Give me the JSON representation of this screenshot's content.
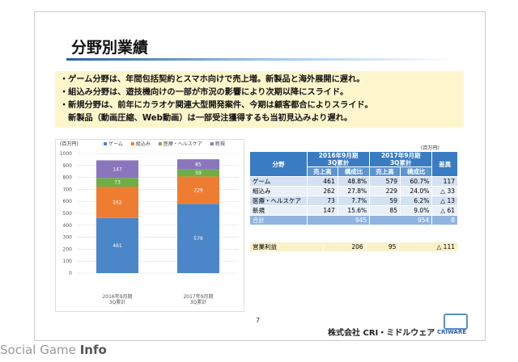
{
  "title": "分野別業績",
  "bullets": [
    "・ゲーム分野は、年間包括契約とスマホ向けで売上増。新製品と海外展開に遅れ。",
    "・組込み分野は、遊技機向けの一部が市況の影響により次期以降にスライド。",
    "・新規分野は、前年にカラオケ関連大型開発案件、今期は顧客都合によりスライド。",
    "　新製品（動画圧縮、Web動画）は一部受注獲得するも当初見込みより遅れ。"
  ],
  "chart_data": {
    "type": "bar",
    "stacked": true,
    "unit_label": "(百万円)",
    "categories": [
      "2016年9月期\n3Q累計",
      "2017年9月期\n3Q累計"
    ],
    "series": [
      {
        "name": "ゲーム",
        "color": "#4a86c8",
        "values": [
          461,
          579
        ]
      },
      {
        "name": "組込み",
        "color": "#ee7d31",
        "values": [
          262,
          229
        ]
      },
      {
        "name": "医療・ヘルスケア",
        "color": "#70ad47",
        "values": [
          73,
          59
        ]
      },
      {
        "name": "新規",
        "color": "#8a76bd",
        "values": [
          147,
          85
        ]
      }
    ],
    "ylim": [
      0,
      1000
    ],
    "yticks": [
      0,
      100,
      200,
      300,
      400,
      500,
      600,
      700,
      800,
      900,
      1000
    ],
    "grid": true,
    "legend": "top"
  },
  "table": {
    "unit": "(百万円)",
    "header": [
      "分野",
      "2016年9月期\n3Q累計",
      "2017年9月期\n3Q累計",
      "差異"
    ],
    "subheader": [
      "売上高",
      "構成比",
      "売上高",
      "構成比"
    ],
    "rows": [
      [
        "ゲーム",
        "461",
        "48.8%",
        "579",
        "60.7%",
        "117"
      ],
      [
        "組込み",
        "262",
        "27.8%",
        "229",
        "24.0%",
        "△ 33"
      ],
      [
        "医療・ヘルスケア",
        "73",
        "7.7%",
        "59",
        "6.2%",
        "△ 13"
      ],
      [
        "新規",
        "147",
        "15.6%",
        "85",
        "9.0%",
        "△ 61"
      ]
    ],
    "total": [
      "合計",
      "945",
      "954",
      "8"
    ],
    "profit": [
      "営業利益",
      "206",
      "95",
      "△ 111"
    ]
  },
  "page": "7",
  "company": "株式会社 CRI・ミドルウェア",
  "logo": "CRIWARE",
  "watermark": [
    "Social Game",
    "Info"
  ]
}
